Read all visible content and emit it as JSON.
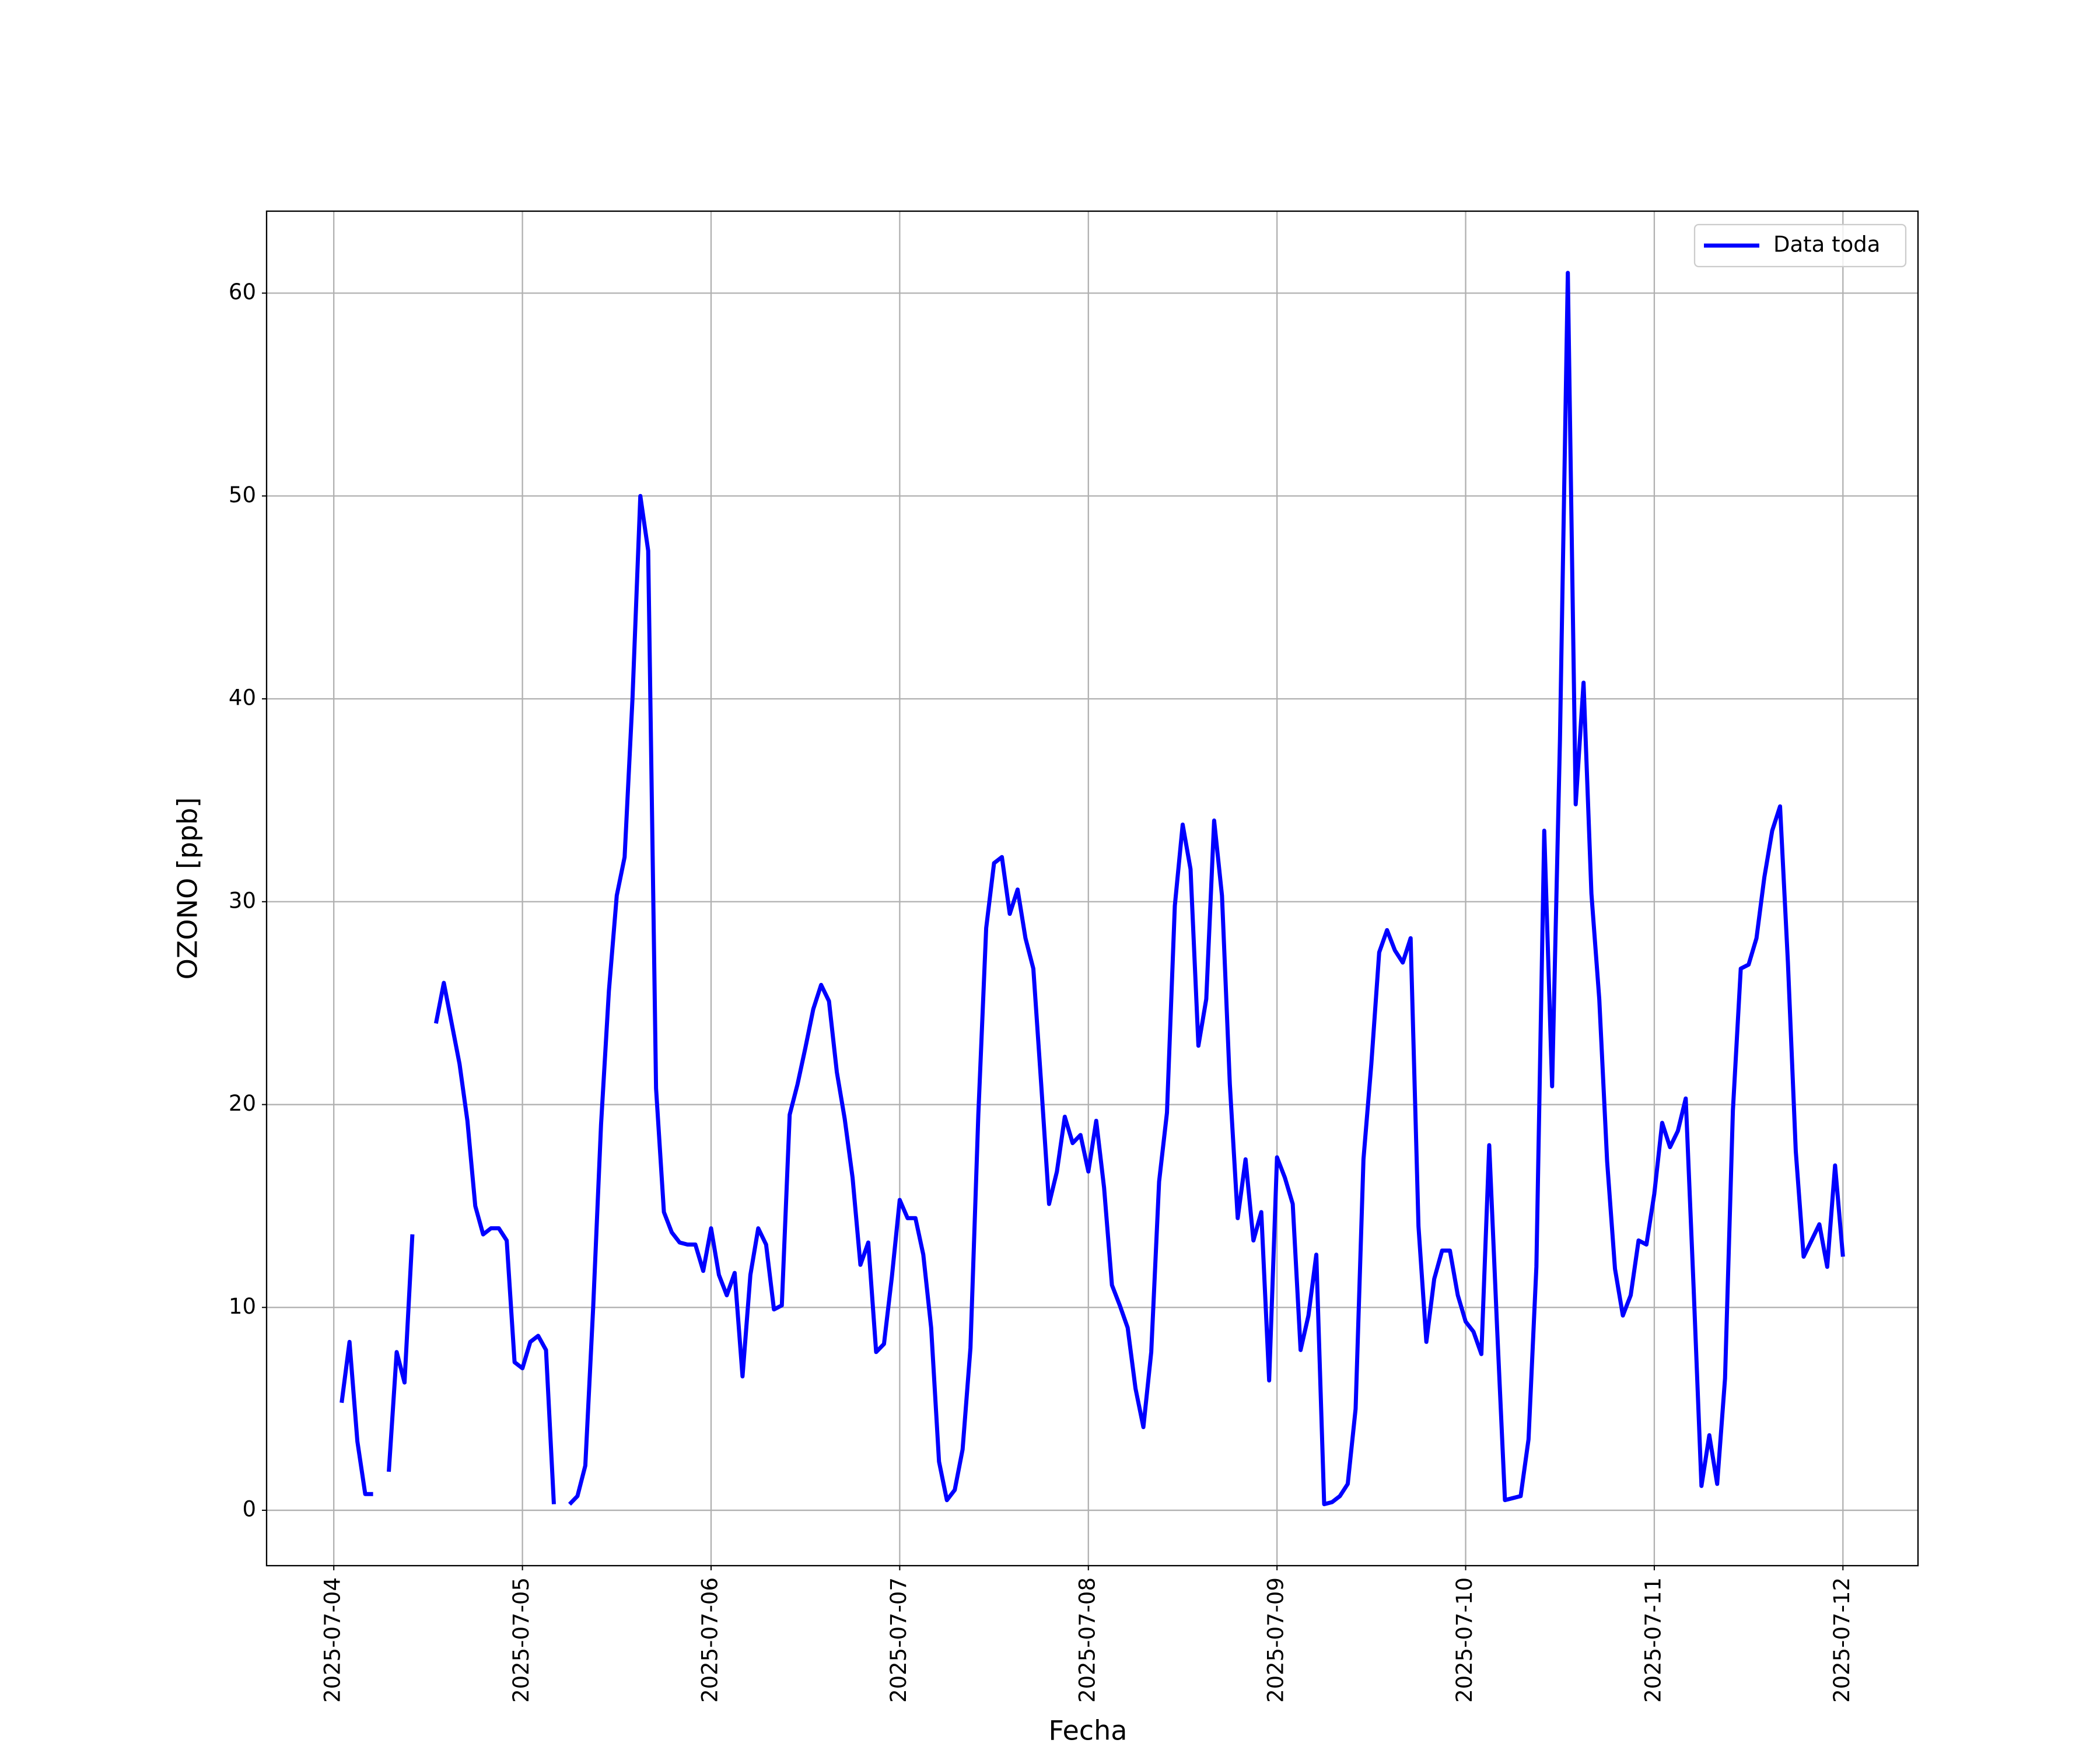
{
  "chart_data": {
    "type": "line",
    "x_label": "Fecha",
    "y_label": "OZONO [ppb]",
    "x": [
      "2025-07-04 01:00",
      "2025-07-04 02:00",
      "2025-07-04 03:00",
      "2025-07-04 04:00",
      "2025-07-04 05:00",
      "2025-07-04 06:00",
      "2025-07-04 07:00",
      "2025-07-04 08:00",
      "2025-07-04 09:00",
      "2025-07-04 10:00",
      "2025-07-04 11:00",
      "2025-07-04 12:00",
      "2025-07-04 13:00",
      "2025-07-04 14:00",
      "2025-07-04 15:00",
      "2025-07-04 16:00",
      "2025-07-04 17:00",
      "2025-07-04 18:00",
      "2025-07-04 19:00",
      "2025-07-04 20:00",
      "2025-07-04 21:00",
      "2025-07-04 22:00",
      "2025-07-04 23:00",
      "2025-07-05 00:00",
      "2025-07-05 01:00",
      "2025-07-05 02:00",
      "2025-07-05 03:00",
      "2025-07-05 04:00",
      "2025-07-05 05:00",
      "2025-07-05 06:00",
      "2025-07-05 07:00",
      "2025-07-05 08:00",
      "2025-07-05 09:00",
      "2025-07-05 10:00",
      "2025-07-05 11:00",
      "2025-07-05 12:00",
      "2025-07-05 13:00",
      "2025-07-05 14:00",
      "2025-07-05 15:00",
      "2025-07-05 16:00",
      "2025-07-05 17:00",
      "2025-07-05 18:00",
      "2025-07-05 19:00",
      "2025-07-05 20:00",
      "2025-07-05 21:00",
      "2025-07-05 22:00",
      "2025-07-05 23:00",
      "2025-07-06 00:00",
      "2025-07-06 01:00",
      "2025-07-06 02:00",
      "2025-07-06 03:00",
      "2025-07-06 04:00",
      "2025-07-06 05:00",
      "2025-07-06 06:00",
      "2025-07-06 07:00",
      "2025-07-06 08:00",
      "2025-07-06 09:00",
      "2025-07-06 10:00",
      "2025-07-06 11:00",
      "2025-07-06 12:00",
      "2025-07-06 13:00",
      "2025-07-06 14:00",
      "2025-07-06 15:00",
      "2025-07-06 16:00",
      "2025-07-06 17:00",
      "2025-07-06 18:00",
      "2025-07-06 19:00",
      "2025-07-06 20:00",
      "2025-07-06 21:00",
      "2025-07-06 22:00",
      "2025-07-06 23:00",
      "2025-07-07 00:00",
      "2025-07-07 01:00",
      "2025-07-07 02:00",
      "2025-07-07 03:00",
      "2025-07-07 04:00",
      "2025-07-07 05:00",
      "2025-07-07 06:00",
      "2025-07-07 07:00",
      "2025-07-07 08:00",
      "2025-07-07 09:00",
      "2025-07-07 10:00",
      "2025-07-07 11:00",
      "2025-07-07 12:00",
      "2025-07-07 13:00",
      "2025-07-07 14:00",
      "2025-07-07 15:00",
      "2025-07-07 16:00",
      "2025-07-07 17:00",
      "2025-07-07 18:00",
      "2025-07-07 19:00",
      "2025-07-07 20:00",
      "2025-07-07 21:00",
      "2025-07-07 22:00",
      "2025-07-07 23:00",
      "2025-07-08 00:00",
      "2025-07-08 01:00",
      "2025-07-08 02:00",
      "2025-07-08 03:00",
      "2025-07-08 04:00",
      "2025-07-08 05:00",
      "2025-07-08 06:00",
      "2025-07-08 07:00",
      "2025-07-08 08:00",
      "2025-07-08 09:00",
      "2025-07-08 10:00",
      "2025-07-08 11:00",
      "2025-07-08 12:00",
      "2025-07-08 13:00",
      "2025-07-08 14:00",
      "2025-07-08 15:00",
      "2025-07-08 16:00",
      "2025-07-08 17:00",
      "2025-07-08 18:00",
      "2025-07-08 19:00",
      "2025-07-08 20:00",
      "2025-07-08 21:00",
      "2025-07-08 22:00",
      "2025-07-08 23:00",
      "2025-07-09 00:00",
      "2025-07-09 01:00",
      "2025-07-09 02:00",
      "2025-07-09 03:00",
      "2025-07-09 04:00",
      "2025-07-09 05:00",
      "2025-07-09 06:00",
      "2025-07-09 07:00",
      "2025-07-09 08:00",
      "2025-07-09 09:00",
      "2025-07-09 10:00",
      "2025-07-09 11:00",
      "2025-07-09 12:00",
      "2025-07-09 13:00",
      "2025-07-09 14:00",
      "2025-07-09 15:00",
      "2025-07-09 16:00",
      "2025-07-09 17:00",
      "2025-07-09 18:00",
      "2025-07-09 19:00",
      "2025-07-09 20:00",
      "2025-07-09 21:00",
      "2025-07-09 22:00",
      "2025-07-09 23:00",
      "2025-07-10 00:00",
      "2025-07-10 01:00",
      "2025-07-10 02:00",
      "2025-07-10 03:00",
      "2025-07-10 04:00",
      "2025-07-10 05:00",
      "2025-07-10 06:00",
      "2025-07-10 07:00",
      "2025-07-10 08:00",
      "2025-07-10 09:00",
      "2025-07-10 10:00",
      "2025-07-10 11:00",
      "2025-07-10 12:00",
      "2025-07-10 13:00",
      "2025-07-10 14:00",
      "2025-07-10 15:00",
      "2025-07-10 16:00",
      "2025-07-10 17:00",
      "2025-07-10 18:00",
      "2025-07-10 19:00",
      "2025-07-10 20:00",
      "2025-07-10 21:00",
      "2025-07-10 22:00",
      "2025-07-10 23:00",
      "2025-07-11 00:00",
      "2025-07-11 01:00",
      "2025-07-11 02:00",
      "2025-07-11 03:00",
      "2025-07-11 04:00",
      "2025-07-11 05:00",
      "2025-07-11 06:00",
      "2025-07-11 07:00",
      "2025-07-11 08:00",
      "2025-07-11 09:00",
      "2025-07-11 10:00",
      "2025-07-11 11:00",
      "2025-07-11 12:00",
      "2025-07-11 13:00",
      "2025-07-11 14:00",
      "2025-07-11 15:00",
      "2025-07-11 16:00",
      "2025-07-11 17:00",
      "2025-07-11 18:00",
      "2025-07-11 19:00",
      "2025-07-11 20:00",
      "2025-07-11 21:00",
      "2025-07-11 22:00",
      "2025-07-11 23:00",
      "2025-07-12 00:00"
    ],
    "series": [
      {
        "name": "Data toda",
        "color": "#0000ff",
        "values": [
          5.3,
          8.3,
          3.4,
          0.8,
          0.8,
          null,
          1.9,
          7.8,
          6.3,
          13.6,
          null,
          null,
          24,
          26,
          24,
          22,
          19.2,
          15,
          13.6,
          13.9,
          13.9,
          13.3,
          7.3,
          7.0,
          8.3,
          8.6,
          7.9,
          0.3,
          null,
          0.3,
          0.7,
          2.2,
          10,
          19,
          25.6,
          30.3,
          32.2,
          40,
          50,
          47.3,
          20.8,
          14.7,
          13.7,
          13.2,
          13.1,
          13.1,
          11.8,
          13.9,
          11.6,
          10.6,
          11.7,
          6.6,
          11.6,
          13.9,
          13.1,
          9.9,
          10.1,
          19.5,
          21,
          22.8,
          24.7,
          25.9,
          25.1,
          21.6,
          19.3,
          16.4,
          12.1,
          13.2,
          7.8,
          8.2,
          11.5,
          15.3,
          14.4,
          14.4,
          12.6,
          9,
          2.4,
          0.5,
          1,
          3,
          8,
          19.5,
          28.7,
          31.9,
          32.2,
          29.4,
          30.6,
          28.2,
          26.7,
          21,
          15.1,
          16.7,
          19.4,
          18.1,
          18.5,
          16.7,
          19.2,
          15.9,
          11.1,
          10.1,
          9,
          6,
          4.1,
          7.8,
          16.2,
          19.6,
          29.8,
          33.8,
          31.6,
          22.9,
          25.2,
          34,
          30.3,
          21,
          14.4,
          17.3,
          13.3,
          14.7,
          6.4,
          17.4,
          16.4,
          15.1,
          7.9,
          9.6,
          12.6,
          0.3,
          0.4,
          0.7,
          1.3,
          5,
          17.3,
          22,
          27.5,
          28.6,
          27.6,
          27,
          28.2,
          14,
          8.3,
          11.4,
          12.8,
          12.8,
          10.6,
          9.3,
          8.8,
          7.7,
          18,
          9,
          0.5,
          0.6,
          0.7,
          3.5,
          12,
          33.5,
          20.9,
          38,
          61,
          34.8,
          40.8,
          30.4,
          25.2,
          17.2,
          11.9,
          9.6,
          10.6,
          13.3,
          13.1,
          15.6,
          19.1,
          17.9,
          18.7,
          20.3,
          11,
          1.2,
          3.7,
          1.3,
          6.5,
          19.7,
          26.7,
          26.9,
          28.2,
          31.2,
          33.5,
          34.7,
          27,
          17.7,
          12.5,
          13.3,
          14.1,
          12,
          17,
          12.5
        ]
      }
    ],
    "xlim": [
      "2025-07-03 15:27",
      "2025-07-12 09:33"
    ],
    "xticks": [
      "2025-07-04",
      "2025-07-05",
      "2025-07-06",
      "2025-07-07",
      "2025-07-08",
      "2025-07-09",
      "2025-07-10",
      "2025-07-11",
      "2025-07-12"
    ],
    "ylim": [
      -2.73,
      64.04
    ],
    "yticks": [
      0,
      10,
      20,
      30,
      40,
      50,
      60
    ],
    "grid": true,
    "legend": "upper right"
  }
}
